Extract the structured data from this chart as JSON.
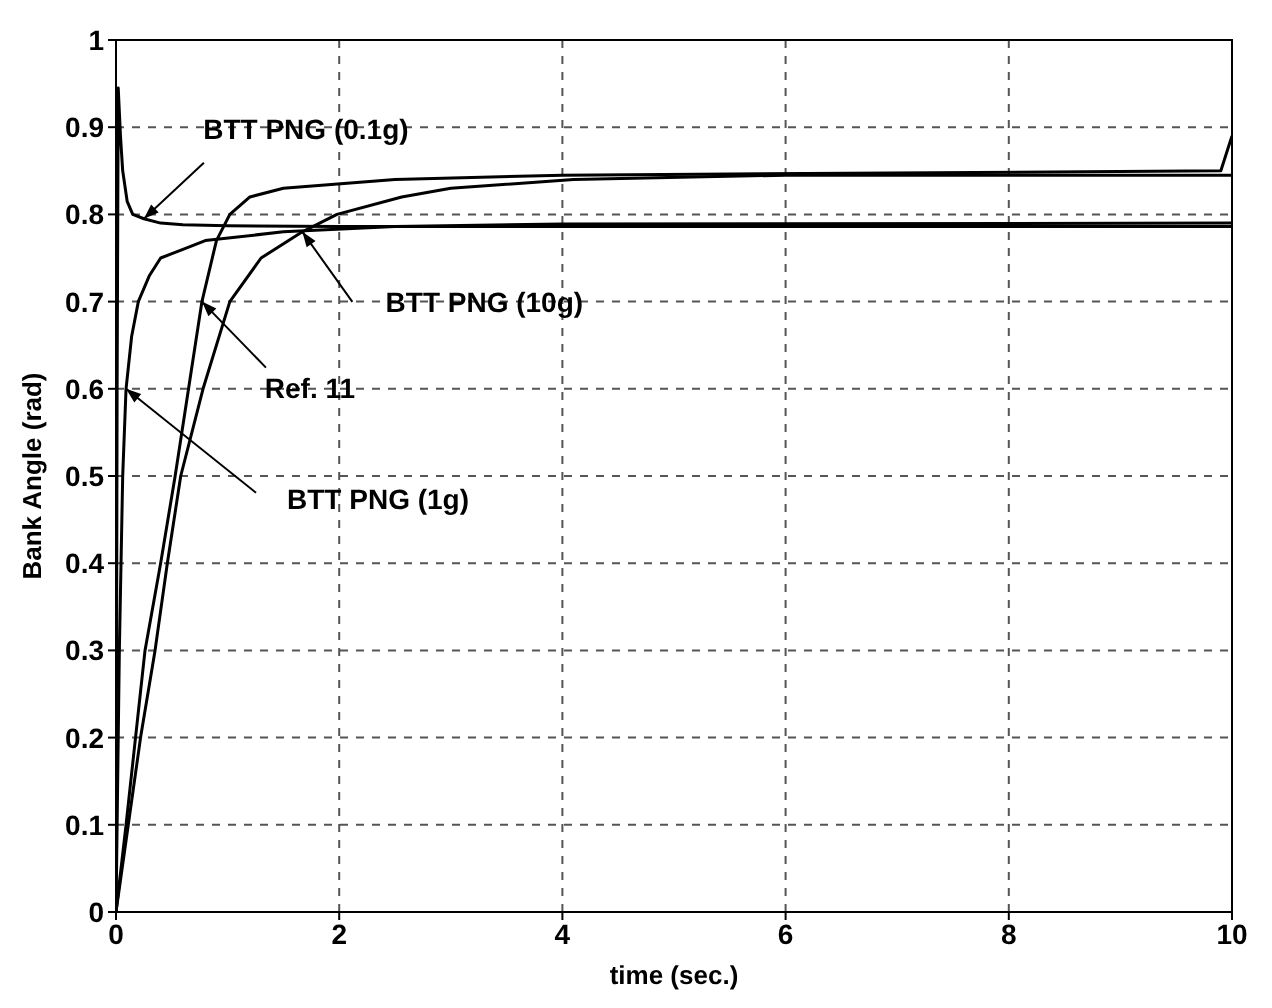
{
  "chart_data": {
    "type": "line",
    "xlabel": "time (sec.)",
    "ylabel": "Bank Angle (rad)",
    "xlim": [
      0,
      10
    ],
    "xticks": [
      0,
      2,
      4,
      6,
      8,
      10
    ],
    "ylim": [
      0,
      1
    ],
    "yticks": [
      0,
      0.1,
      0.2,
      0.3,
      0.4,
      0.5,
      0.6,
      0.7,
      0.8,
      0.9,
      1
    ],
    "grid": true,
    "legend": false,
    "marker": "none",
    "line_style": "solid",
    "series": [
      {
        "color": "#000000",
        "x": [
          0,
          0.01,
          0.02,
          0.04,
          0.06,
          0.1,
          0.15,
          0.25,
          0.4,
          0.6,
          1,
          2,
          10
        ],
        "values": [
          0,
          0.6,
          0.945,
          0.89,
          0.85,
          0.815,
          0.8,
          0.795,
          0.79,
          0.788,
          0.787,
          0.786,
          0.786
        ]
      },
      {
        "color": "#000000",
        "x": [
          0,
          0.03,
          0.06,
          0.09,
          0.14,
          0.2,
          0.3,
          0.4,
          0.6,
          0.8,
          1.5,
          2.5,
          4,
          10
        ],
        "values": [
          0,
          0.3,
          0.5,
          0.6,
          0.66,
          0.7,
          0.73,
          0.75,
          0.76,
          0.77,
          0.78,
          0.786,
          0.789,
          0.79
        ]
      },
      {
        "color": "#000000",
        "x": [
          0,
          0.09,
          0.26,
          0.4,
          0.53,
          0.65,
          0.77,
          0.9,
          1.02,
          1.2,
          1.5,
          2.5,
          4,
          9.9,
          10
        ],
        "values": [
          0,
          0.1,
          0.3,
          0.4,
          0.5,
          0.6,
          0.7,
          0.77,
          0.8,
          0.82,
          0.83,
          0.84,
          0.845,
          0.85,
          0.89
        ]
      },
      {
        "color": "#000000",
        "x": [
          0,
          0.11,
          0.22,
          0.35,
          0.46,
          0.58,
          0.78,
          1.02,
          1.3,
          1.67,
          1.98,
          2.56,
          3,
          4.1,
          6,
          10
        ],
        "values": [
          0,
          0.1,
          0.2,
          0.3,
          0.4,
          0.5,
          0.6,
          0.7,
          0.75,
          0.78,
          0.8,
          0.82,
          0.83,
          0.84,
          0.845,
          0.845
        ]
      }
    ],
    "annotations": [
      {
        "text": "BTT PNG (0.1g)",
        "x": 0.25,
        "y": 0.795
      },
      {
        "text": "BTT PNG (10g)",
        "x": 1.67,
        "y": 0.78
      },
      {
        "text": "Ref. 11",
        "x": 0.77,
        "y": 0.7
      },
      {
        "text": "BTT PNG (1g)",
        "x": 0.09,
        "y": 0.6
      }
    ]
  }
}
